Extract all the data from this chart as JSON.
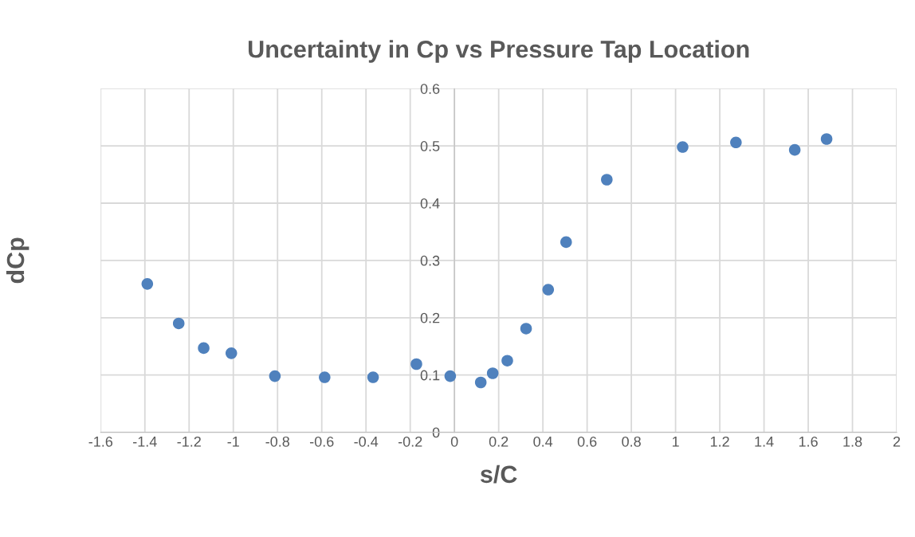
{
  "chart_data": {
    "type": "scatter",
    "title": "Uncertainty in Cp vs Pressure Tap Location",
    "xlabel": "s/C",
    "ylabel": "dCp",
    "x": [
      -1.389,
      -1.247,
      -1.134,
      -1.009,
      -0.812,
      -0.587,
      -0.368,
      -0.172,
      -0.019,
      0.119,
      0.173,
      0.239,
      0.324,
      0.424,
      0.505,
      0.689,
      1.032,
      1.273,
      1.539,
      1.683
    ],
    "series": [
      {
        "color": "#4f81bd",
        "values": [
          0.259,
          0.19,
          0.147,
          0.138,
          0.098,
          0.096,
          0.096,
          0.119,
          0.098,
          0.087,
          0.103,
          0.125,
          0.181,
          0.249,
          0.332,
          0.441,
          0.498,
          0.506,
          0.493,
          0.512
        ]
      }
    ],
    "xlim": [
      -1.6,
      2
    ],
    "xticks": [
      -1.6,
      -1.4,
      -1.2,
      -1,
      -0.8,
      -0.6,
      -0.4,
      -0.2,
      0,
      0.2,
      0.4,
      0.6,
      0.8,
      1,
      1.2,
      1.4,
      1.6,
      1.8,
      2
    ],
    "ylim": [
      0,
      0.6
    ],
    "yticks": [
      0,
      0.1,
      0.2,
      0.3,
      0.4,
      0.5,
      0.6
    ],
    "grid": true,
    "marker": "circle",
    "legend": false
  }
}
